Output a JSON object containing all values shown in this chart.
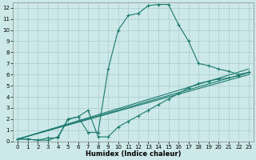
{
  "xlabel": "Humidex (Indice chaleur)",
  "bg_color": "#cce8e8",
  "line_color": "#1a7a6e",
  "grid_color": "#aacccc",
  "xlim": [
    -0.5,
    23.5
  ],
  "ylim": [
    0,
    12.5
  ],
  "xticks": [
    0,
    1,
    2,
    3,
    4,
    5,
    6,
    7,
    8,
    9,
    10,
    11,
    12,
    13,
    14,
    15,
    16,
    17,
    18,
    19,
    20,
    21,
    22,
    23
  ],
  "yticks": [
    0,
    1,
    2,
    3,
    4,
    5,
    6,
    7,
    8,
    9,
    10,
    11,
    12
  ],
  "series1_x": [
    0,
    1,
    2,
    3,
    4,
    5,
    6,
    7,
    8,
    9,
    10,
    11,
    12,
    13,
    14,
    15,
    16,
    17,
    18,
    19,
    20,
    21,
    22,
    23
  ],
  "series1_y": [
    0.2,
    0.2,
    0.1,
    0.1,
    0.4,
    2.0,
    2.2,
    0.8,
    0.8,
    6.5,
    10.0,
    11.3,
    11.5,
    12.2,
    12.3,
    12.3,
    10.5,
    9.0,
    7.0,
    6.8,
    6.5,
    6.3,
    6.0,
    6.2
  ],
  "series2_x": [
    0,
    1,
    2,
    3,
    4,
    5,
    6,
    7,
    8,
    9,
    10,
    11,
    12,
    13,
    14,
    15,
    16,
    17,
    18,
    19,
    20,
    21,
    22,
    23
  ],
  "series2_y": [
    0.2,
    0.2,
    0.1,
    0.3,
    0.3,
    2.0,
    2.2,
    2.8,
    0.4,
    0.4,
    1.3,
    1.8,
    2.3,
    2.8,
    3.3,
    3.8,
    4.3,
    4.8,
    5.2,
    5.4,
    5.6,
    5.7,
    5.9,
    6.2
  ],
  "line3_x": [
    0,
    23
  ],
  "line3_y": [
    0.2,
    6.5
  ],
  "line4_x": [
    0,
    23
  ],
  "line4_y": [
    0.2,
    6.0
  ],
  "line5_x": [
    0,
    23
  ],
  "line5_y": [
    0.2,
    6.2
  ]
}
